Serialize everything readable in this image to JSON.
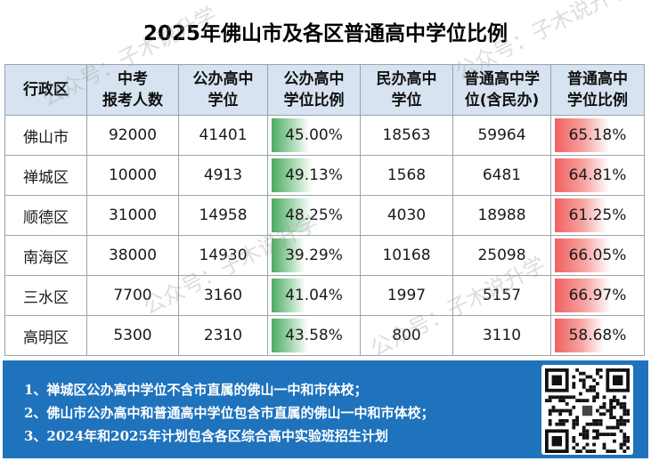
{
  "title": "2025年佛山市及各区普通高中学位比例",
  "headers": [
    [
      "行政区"
    ],
    [
      "中考",
      "报考人数"
    ],
    [
      "公办高中",
      "学位"
    ],
    [
      "公办高中",
      "学位比例"
    ],
    [
      "民办高中",
      "学位"
    ],
    [
      "普通高中学",
      "位(含民办)"
    ],
    [
      "普通高中",
      "学位比例"
    ]
  ],
  "rows": [
    {
      "district": "佛山市",
      "applicants": "92000",
      "public_seats": "41401",
      "public_ratio": "45.00%",
      "private_seats": "18563",
      "total_seats": "59964",
      "total_ratio": "65.18%"
    },
    {
      "district": "禅城区",
      "applicants": "10000",
      "public_seats": "4913",
      "public_ratio": "49.13%",
      "private_seats": "1568",
      "total_seats": "6481",
      "total_ratio": "64.81%"
    },
    {
      "district": "顺德区",
      "applicants": "31000",
      "public_seats": "14958",
      "public_ratio": "48.25%",
      "private_seats": "4030",
      "total_seats": "18988",
      "total_ratio": "61.25%"
    },
    {
      "district": "南海区",
      "applicants": "38000",
      "public_seats": "14930",
      "public_ratio": "39.29%",
      "private_seats": "10168",
      "total_seats": "25098",
      "total_ratio": "66.05%"
    },
    {
      "district": "三水区",
      "applicants": "7700",
      "public_seats": "3160",
      "public_ratio": "41.04%",
      "private_seats": "1997",
      "total_seats": "5157",
      "total_ratio": "66.97%"
    },
    {
      "district": "高明区",
      "applicants": "5300",
      "public_seats": "2310",
      "public_ratio": "43.58%",
      "private_seats": "800",
      "total_seats": "3110",
      "total_ratio": "58.68%"
    }
  ],
  "notes": [
    "1、禅城区公办高中学位不含市直属的佛山一中和市体校；",
    "2、佛山市公办高中和普通高中学位包含市直属的佛山一中和市体校；",
    "3、2024年和2025年计划包含各区综合高中实验班招生计划"
  ],
  "watermark": "公众号：子木说升学",
  "colors": {
    "header_bg": "#d7e3f1",
    "public_ratio_bar": "#4cab62",
    "total_ratio_bar": "#f0615f",
    "notes_bg": "#1f73bd"
  }
}
